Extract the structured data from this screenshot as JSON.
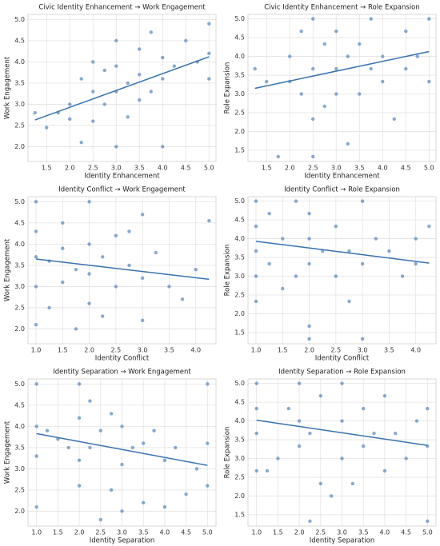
{
  "chart_data": [
    {
      "type": "scatter",
      "title": "Civic Identity Enhancement → Work Engagement",
      "x_label": "Identity Enhancement",
      "y_label": "Work Engagement",
      "color": "#3a72ae",
      "grid": true,
      "xlim": [
        1.1,
        5.15
      ],
      "ylim": [
        1.65,
        5.12
      ],
      "xticks": [
        1.5,
        {
          "value": 2,
          "label": "2.0"
        },
        2.5,
        {
          "value": 3,
          "label": "3.0"
        },
        3.5,
        {
          "value": 4,
          "label": "4.0"
        },
        4.5,
        {
          "value": 5,
          "label": "5.0"
        }
      ],
      "yticks": [
        {
          "value": 2,
          "label": "2.0"
        },
        2.5,
        {
          "value": 3,
          "label": "3.0"
        },
        3.5,
        {
          "value": 4,
          "label": "4.0"
        },
        4.5,
        {
          "value": 5,
          "label": "5.0"
        }
      ],
      "x": [
        1.25,
        1.5,
        1.75,
        2,
        2,
        2.25,
        2.25,
        2.5,
        2.5,
        2.5,
        2.75,
        2.75,
        3,
        3,
        3,
        3,
        3.25,
        3.25,
        3.5,
        3.5,
        3.5,
        3.75,
        3.75,
        4,
        4,
        4,
        4.25,
        4.5,
        4.75,
        5,
        5,
        5
      ],
      "y": [
        2.8,
        2.45,
        2.8,
        2.65,
        3.0,
        2.1,
        3.6,
        3.3,
        2.6,
        4.0,
        3.0,
        3.8,
        2.0,
        3.3,
        3.9,
        4.5,
        2.7,
        3.5,
        3.1,
        3.7,
        4.3,
        3.3,
        4.7,
        2.0,
        3.6,
        4.1,
        3.9,
        4.5,
        4.0,
        4.2,
        4.9,
        3.6
      ],
      "trend": {
        "x": [
          1.25,
          5.0
        ],
        "y": [
          2.63,
          4.12
        ]
      }
    },
    {
      "type": "scatter",
      "title": "Civic Identity Enhancement → Role Expansion",
      "x_label": "Identity Enhancement",
      "y_label": "Role Expansion",
      "color": "#3a72ae",
      "grid": true,
      "xlim": [
        1.1,
        5.15
      ],
      "ylim": [
        1.2,
        5.12
      ],
      "xticks": [
        1.5,
        {
          "value": 2,
          "label": "2.0"
        },
        2.5,
        {
          "value": 3,
          "label": "3.0"
        },
        3.5,
        {
          "value": 4,
          "label": "4.0"
        },
        4.5,
        {
          "value": 5,
          "label": "5.0"
        }
      ],
      "yticks": [
        1.5,
        {
          "value": 2,
          "label": "2.0"
        },
        2.5,
        {
          "value": 3,
          "label": "3.0"
        },
        3.5,
        {
          "value": 4,
          "label": "4.0"
        },
        4.5,
        {
          "value": 5,
          "label": "5.0"
        }
      ],
      "x": [
        1.25,
        1.5,
        1.75,
        2,
        2,
        2.25,
        2.25,
        2.5,
        2.5,
        2.5,
        2.75,
        2.75,
        3,
        3,
        3,
        3.25,
        3.25,
        3.5,
        3.5,
        3.75,
        3.75,
        4,
        4,
        4.25,
        4.5,
        4.5,
        4.75,
        5,
        5,
        2.5
      ],
      "y": [
        3.67,
        3.33,
        1.33,
        4.0,
        3.33,
        3.0,
        4.67,
        2.33,
        3.67,
        5.0,
        2.67,
        4.33,
        3.0,
        3.67,
        4.67,
        1.67,
        4.0,
        3.0,
        4.33,
        3.67,
        5.0,
        3.33,
        4.0,
        2.33,
        3.67,
        4.67,
        4.0,
        3.33,
        5.0,
        1.33
      ],
      "trend": {
        "x": [
          1.25,
          5.0
        ],
        "y": [
          3.15,
          4.13
        ]
      }
    },
    {
      "type": "scatter",
      "title": "Identity Conflict → Work Engagement",
      "x_label": "Identity Conflict",
      "y_label": "Work Engagement",
      "color": "#3a72ae",
      "grid": true,
      "xlim": [
        0.85,
        4.38
      ],
      "ylim": [
        1.65,
        5.12
      ],
      "xticks": [
        {
          "value": 1,
          "label": "1.0"
        },
        1.5,
        {
          "value": 2,
          "label": "2.0"
        },
        2.5,
        {
          "value": 3,
          "label": "3.0"
        },
        3.5,
        {
          "value": 4,
          "label": "4.0"
        }
      ],
      "yticks": [
        {
          "value": 2,
          "label": "2.0"
        },
        2.5,
        {
          "value": 3,
          "label": "3.0"
        },
        3.5,
        {
          "value": 4,
          "label": "4.0"
        },
        4.5,
        {
          "value": 5,
          "label": "5.0"
        }
      ],
      "x": [
        1,
        1,
        1,
        1,
        1,
        1.25,
        1.25,
        1.5,
        1.5,
        1.5,
        1.75,
        1.75,
        2,
        2,
        2,
        2,
        2.25,
        2.25,
        2.5,
        2.5,
        2.75,
        2.75,
        3,
        3,
        3,
        3.25,
        3.5,
        3.75,
        4,
        4.25
      ],
      "y": [
        2.1,
        3.0,
        3.7,
        4.3,
        5.0,
        2.5,
        3.6,
        3.1,
        3.9,
        4.5,
        2.0,
        3.4,
        2.6,
        3.3,
        4.0,
        5.0,
        2.3,
        3.7,
        3.0,
        4.2,
        3.5,
        4.3,
        2.2,
        3.2,
        4.7,
        3.8,
        3.0,
        2.7,
        3.4,
        4.55
      ],
      "trend": {
        "x": [
          1.0,
          4.25
        ],
        "y": [
          3.65,
          3.17
        ]
      }
    },
    {
      "type": "scatter",
      "title": "Identity Conflict → Role Expansion",
      "x_label": "Identity Conflict",
      "y_label": "Role Expansion",
      "color": "#3a72ae",
      "grid": true,
      "xlim": [
        0.85,
        4.38
      ],
      "ylim": [
        1.2,
        5.12
      ],
      "xticks": [
        {
          "value": 1,
          "label": "1.0"
        },
        1.5,
        {
          "value": 2,
          "label": "2.0"
        },
        2.5,
        {
          "value": 3,
          "label": "3.0"
        },
        3.5,
        {
          "value": 4,
          "label": "4.0"
        }
      ],
      "yticks": [
        1.5,
        {
          "value": 2,
          "label": "2.0"
        },
        2.5,
        {
          "value": 3,
          "label": "3.0"
        },
        3.5,
        {
          "value": 4,
          "label": "4.0"
        },
        4.5,
        {
          "value": 5,
          "label": "5.0"
        }
      ],
      "x": [
        1,
        1,
        1,
        1,
        1,
        1.25,
        1.25,
        1.5,
        1.5,
        1.75,
        1.75,
        2,
        2,
        2,
        2,
        2,
        2.25,
        2.5,
        2.5,
        2.75,
        2.75,
        3,
        3,
        3,
        3.25,
        3.5,
        3.75,
        4,
        4,
        4.25
      ],
      "y": [
        2.33,
        3.0,
        3.67,
        4.33,
        5.0,
        3.33,
        4.67,
        2.67,
        4.0,
        3.0,
        5.0,
        1.33,
        1.67,
        3.33,
        4.0,
        4.67,
        3.67,
        3.0,
        4.33,
        2.33,
        3.67,
        1.33,
        3.33,
        5.0,
        4.0,
        3.67,
        3.0,
        3.33,
        4.0,
        4.33
      ],
      "trend": {
        "x": [
          1.0,
          4.25
        ],
        "y": [
          3.93,
          3.35
        ]
      }
    },
    {
      "type": "scatter",
      "title": "Identity Separation → Work Engagement",
      "x_label": "Identity Separation",
      "y_label": "Work Engagement",
      "color": "#3a72ae",
      "grid": true,
      "xlim": [
        0.8,
        5.2
      ],
      "ylim": [
        1.65,
        5.12
      ],
      "xticks": [
        {
          "value": 1,
          "label": "1.0"
        },
        1.5,
        {
          "value": 2,
          "label": "2.0"
        },
        2.5,
        {
          "value": 3,
          "label": "3.0"
        },
        3.5,
        {
          "value": 4,
          "label": "4.0"
        },
        4.5,
        {
          "value": 5,
          "label": "5.0"
        }
      ],
      "yticks": [
        {
          "value": 2,
          "label": "2.0"
        },
        2.5,
        {
          "value": 3,
          "label": "3.0"
        },
        3.5,
        {
          "value": 4,
          "label": "4.0"
        },
        4.5,
        {
          "value": 5,
          "label": "5.0"
        }
      ],
      "x": [
        1,
        1,
        1,
        1,
        1.25,
        1.5,
        1.75,
        2,
        2,
        2,
        2,
        2.25,
        2.25,
        2.5,
        2.5,
        2.75,
        2.75,
        3,
        3,
        3,
        3.25,
        3.5,
        3.5,
        3.75,
        4,
        4,
        4.25,
        4.5,
        4.75,
        5,
        5,
        5
      ],
      "y": [
        2.1,
        3.3,
        4.0,
        5.0,
        3.9,
        3.7,
        3.5,
        2.6,
        3.2,
        4.2,
        5.0,
        3.5,
        4.6,
        1.8,
        3.9,
        2.5,
        4.3,
        2.0,
        3.1,
        4.0,
        3.5,
        2.2,
        3.6,
        3.9,
        2.1,
        3.2,
        3.5,
        2.4,
        3.0,
        2.6,
        3.6,
        5.0
      ],
      "trend": {
        "x": [
          1.0,
          5.0
        ],
        "y": [
          3.83,
          3.08
        ]
      }
    },
    {
      "type": "scatter",
      "title": "Identity Separation → Role Expansion",
      "x_label": "Identity Separation",
      "y_label": "Role Expansion",
      "color": "#3a72ae",
      "grid": true,
      "xlim": [
        0.8,
        5.2
      ],
      "ylim": [
        1.2,
        5.12
      ],
      "xticks": [
        {
          "value": 1,
          "label": "1.0"
        },
        1.5,
        {
          "value": 2,
          "label": "2.0"
        },
        2.5,
        {
          "value": 3,
          "label": "3.0"
        },
        3.5,
        {
          "value": 4,
          "label": "4.0"
        },
        4.5,
        {
          "value": 5,
          "label": "5.0"
        }
      ],
      "yticks": [
        1.5,
        {
          "value": 2,
          "label": "2.0"
        },
        2.5,
        {
          "value": 3,
          "label": "3.0"
        },
        3.5,
        {
          "value": 4,
          "label": "4.0"
        },
        4.5,
        {
          "value": 5,
          "label": "5.0"
        }
      ],
      "x": [
        1,
        1,
        1,
        1,
        1.25,
        1.5,
        1.75,
        2,
        2,
        2,
        2.25,
        2.25,
        2.5,
        2.5,
        2.75,
        3,
        3,
        3,
        3.25,
        3.5,
        3.5,
        3.75,
        4,
        4,
        4.25,
        4.5,
        4.75,
        5,
        5,
        5
      ],
      "y": [
        2.67,
        3.67,
        4.33,
        5.0,
        2.67,
        3.0,
        4.33,
        3.33,
        4.0,
        5.0,
        1.33,
        3.67,
        2.33,
        4.67,
        2.0,
        3.0,
        4.0,
        5.0,
        2.33,
        3.33,
        4.33,
        3.67,
        2.67,
        4.67,
        3.67,
        3.0,
        4.0,
        1.33,
        3.33,
        4.33
      ],
      "trend": {
        "x": [
          1.0,
          5.0
        ],
        "y": [
          4.02,
          3.35
        ]
      }
    }
  ]
}
